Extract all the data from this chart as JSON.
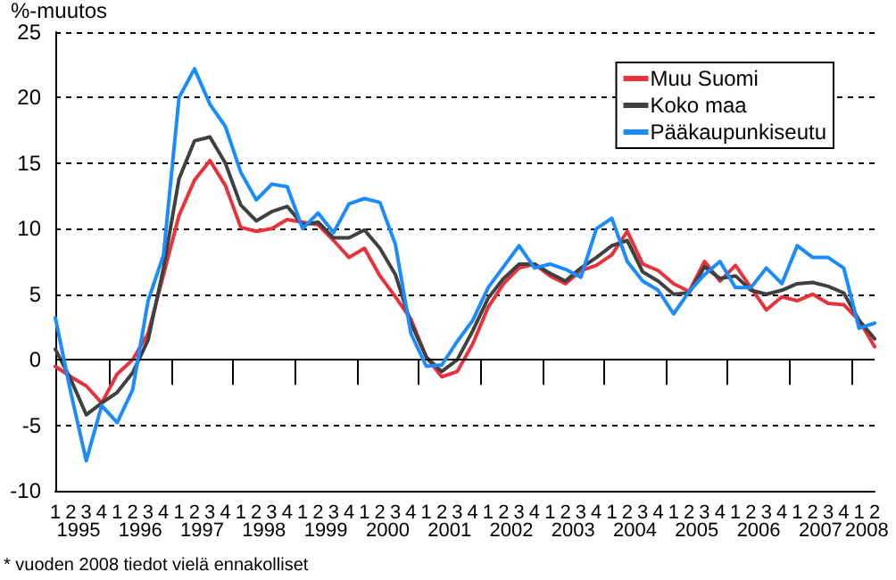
{
  "chart_data": {
    "type": "line",
    "ylabel": "%-muutos",
    "categories": [
      "1",
      "2",
      "3",
      "4",
      "1",
      "2",
      "3",
      "4",
      "1",
      "2",
      "3",
      "4",
      "1",
      "2",
      "3",
      "4",
      "1",
      "2",
      "3",
      "4",
      "1",
      "2",
      "3",
      "4",
      "1",
      "2",
      "3",
      "4",
      "1",
      "2",
      "3",
      "4",
      "1",
      "2",
      "3",
      "4",
      "1",
      "2",
      "3",
      "4",
      "1",
      "2",
      "3",
      "4",
      "1",
      "2",
      "3",
      "4",
      "1",
      "2",
      "3",
      "4",
      "1",
      "2"
    ],
    "series": [
      {
        "name": "Muu Suomi",
        "color": "#e8323c",
        "values": [
          -0.5,
          -1.3,
          -2,
          -3.3,
          -1.1,
          0,
          2,
          6.5,
          11,
          13.7,
          15.2,
          13.3,
          10.1,
          9.8,
          10,
          10.7,
          10.5,
          10.3,
          9.1,
          7.8,
          8.5,
          6.4,
          4.8,
          3.1,
          0.2,
          -1.3,
          -0.9,
          1.2,
          4,
          5.8,
          7,
          7.3,
          6.4,
          5.8,
          6.8,
          7.2,
          8,
          9.8,
          7.3,
          6.8,
          5.8,
          5.2,
          7.5,
          6,
          7.2,
          5.5,
          3.8,
          4.8,
          4.5,
          5,
          4.3,
          4.2,
          3,
          1
        ]
      },
      {
        "name": "Koko maa",
        "color": "#404040",
        "values": [
          0.8,
          -1.5,
          -4.2,
          -3.3,
          -2.5,
          -1,
          1.5,
          7,
          13.8,
          16.7,
          17,
          15,
          11.8,
          10.6,
          11.3,
          11.7,
          10.3,
          10.5,
          9.3,
          9.3,
          9.9,
          8.5,
          6.5,
          2.8,
          0.2,
          -0.9,
          0,
          2.2,
          4.7,
          6.2,
          7.3,
          7.3,
          6.6,
          6,
          7,
          7.8,
          8.7,
          9.1,
          6.7,
          6,
          5,
          5.1,
          7.1,
          6.2,
          6.4,
          5.3,
          5,
          5.3,
          5.8,
          5.9,
          5.6,
          5.1,
          3,
          1.6
        ]
      },
      {
        "name": "Pääkaupunkiseutu",
        "color": "#1a8cff",
        "values": [
          3.2,
          -2.5,
          -7.7,
          -3.5,
          -4.8,
          -2.3,
          4.5,
          8,
          20,
          22.2,
          19.5,
          17.8,
          14.3,
          12.2,
          13.4,
          13.2,
          10,
          11.2,
          9.7,
          11.9,
          12.3,
          12,
          8.8,
          2,
          -0.5,
          -0.4,
          1.4,
          3,
          5.5,
          7.1,
          8.7,
          7,
          7.3,
          6.9,
          6.3,
          10,
          10.8,
          7.5,
          6,
          5.3,
          3.5,
          5.2,
          6.5,
          7.5,
          5.5,
          5.5,
          7,
          5.8,
          8.7,
          7.8,
          7.8,
          7,
          2.4,
          2.8
        ]
      }
    ],
    "ylim": [
      -10,
      25
    ],
    "yticks": [
      -10,
      -5,
      0,
      5,
      10,
      15,
      20,
      25
    ],
    "grid": "y",
    "legend": "top right",
    "marker": "none",
    "line_style": "solid",
    "ref_lines": [
      {
        "axis": "y",
        "value": 0,
        "color": "#000000",
        "line_style": "solid"
      }
    ],
    "annotations": [
      "1995",
      "1996",
      "1997",
      "1998",
      "1999",
      "2000",
      "2001",
      "2002",
      "2003",
      "2004",
      "2005",
      "2006",
      "2007",
      "2008",
      "* vuoden 2008 tiedot vielä ennakolliset"
    ]
  }
}
